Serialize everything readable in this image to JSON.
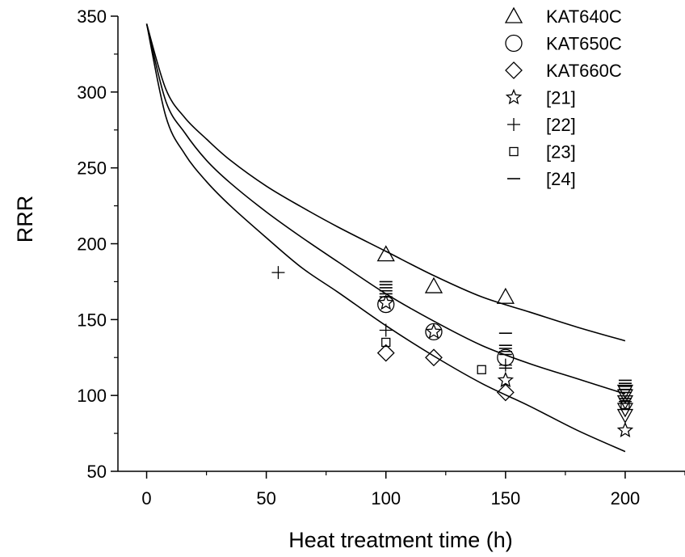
{
  "chart_data": {
    "type": "scatter",
    "xlabel": "Heat treatment time (h)",
    "ylabel": "RRR",
    "xlim": [
      -12,
      225
    ],
    "ylim": [
      50,
      350
    ],
    "xticks": [
      "0",
      "50",
      "100",
      "150",
      "200"
    ],
    "yticks": [
      "50",
      "100",
      "150",
      "200",
      "250",
      "300",
      "350"
    ],
    "grid": false,
    "legend_position": "top-right",
    "series": [
      {
        "name": "KAT640C",
        "marker": "triangle",
        "points": [
          [
            100,
            193
          ],
          [
            120,
            172
          ],
          [
            150,
            165
          ]
        ]
      },
      {
        "name": "KAT650C",
        "marker": "circle",
        "points": [
          [
            100,
            160
          ],
          [
            120,
            142
          ],
          [
            150,
            125
          ]
        ]
      },
      {
        "name": "KAT660C",
        "marker": "diamond",
        "points": [
          [
            100,
            128
          ],
          [
            120,
            125
          ],
          [
            150,
            102
          ]
        ]
      },
      {
        "name": "[21]",
        "marker": "star",
        "points": [
          [
            100,
            161
          ],
          [
            120,
            142
          ],
          [
            150,
            110
          ],
          [
            200,
            77
          ]
        ]
      },
      {
        "name": "[22]",
        "marker": "plus",
        "points": [
          [
            55,
            181
          ],
          [
            100,
            143
          ],
          [
            150,
            120
          ]
        ]
      },
      {
        "name": "[23]",
        "marker": "square",
        "points": [
          [
            100,
            135
          ],
          [
            140,
            117
          ],
          [
            200,
            94
          ]
        ]
      },
      {
        "name": "[24]",
        "marker": "dash",
        "points": [
          [
            100,
            165
          ],
          [
            100,
            167
          ],
          [
            100,
            169
          ],
          [
            100,
            171
          ],
          [
            100,
            173
          ],
          [
            100,
            175
          ],
          [
            150,
            141
          ],
          [
            150,
            133
          ],
          [
            150,
            131
          ],
          [
            150,
            129
          ],
          [
            150,
            127
          ],
          [
            150,
            118
          ],
          [
            200,
            110
          ],
          [
            200,
            108
          ],
          [
            200,
            106
          ],
          [
            200,
            104
          ],
          [
            200,
            102
          ],
          [
            200,
            98
          ],
          [
            200,
            96
          ]
        ]
      },
      {
        "name": "",
        "marker": "triangle-down",
        "points": [
          [
            200,
            103
          ],
          [
            200,
            100
          ],
          [
            200,
            96
          ],
          [
            200,
            91
          ],
          [
            200,
            87
          ]
        ]
      }
    ],
    "fit_curves": [
      {
        "x": [
          0,
          8,
          16,
          25,
          35,
          50,
          65,
          80,
          100,
          120,
          140,
          160,
          180,
          200
        ],
        "y": [
          345,
          302,
          283,
          269,
          255,
          238,
          224,
          211,
          195,
          179,
          165,
          155,
          145,
          136
        ]
      },
      {
        "x": [
          0,
          8,
          16,
          25,
          35,
          50,
          65,
          80,
          100,
          120,
          140,
          160,
          180,
          200
        ],
        "y": [
          345,
          294,
          273,
          255,
          240,
          221,
          204,
          188,
          167,
          149,
          133,
          121,
          111,
          101
        ]
      },
      {
        "x": [
          0,
          8,
          16,
          25,
          35,
          50,
          65,
          80,
          100,
          120,
          140,
          160,
          180,
          200
        ],
        "y": [
          345,
          284,
          259,
          241,
          225,
          204,
          184,
          168,
          146,
          126,
          108,
          93,
          77,
          63
        ]
      }
    ]
  }
}
